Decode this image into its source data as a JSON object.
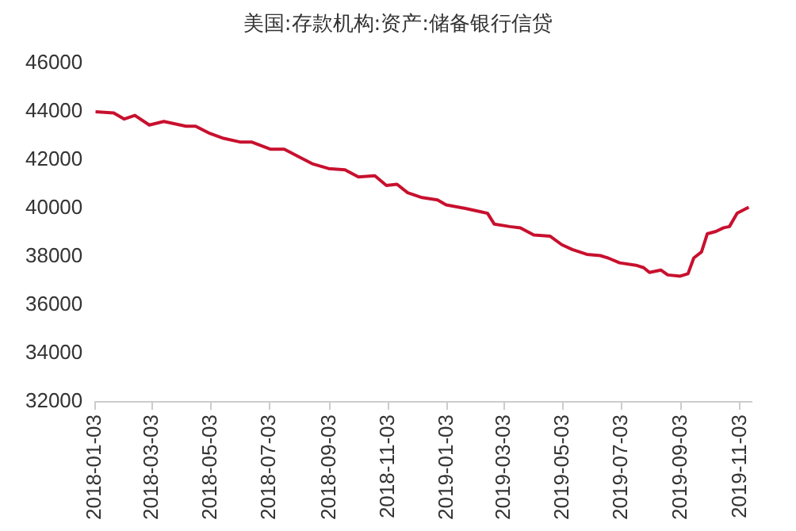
{
  "chart_data": {
    "type": "line",
    "title": "美国:存款机构:资产:储备银行信贷",
    "x": [
      "2018-01-03",
      "2018-01-22",
      "2018-02-02",
      "2018-02-13",
      "2018-02-28",
      "2018-03-15",
      "2018-04-07",
      "2018-04-17",
      "2018-05-02",
      "2018-05-16",
      "2018-06-02",
      "2018-06-14",
      "2018-07-04",
      "2018-07-18",
      "2018-08-04",
      "2018-08-16",
      "2018-09-02",
      "2018-09-19",
      "2018-10-03",
      "2018-10-20",
      "2018-11-01",
      "2018-11-12",
      "2018-11-23",
      "2018-12-08",
      "2018-12-24",
      "2019-01-02",
      "2019-01-22",
      "2019-02-08",
      "2019-02-14",
      "2019-02-21",
      "2019-03-09",
      "2019-03-20",
      "2019-04-03",
      "2019-04-20",
      "2019-05-02",
      "2019-05-13",
      "2019-05-28",
      "2019-06-11",
      "2019-06-19",
      "2019-07-01",
      "2019-07-18",
      "2019-07-26",
      "2019-08-01",
      "2019-08-13",
      "2019-08-20",
      "2019-09-02",
      "2019-09-10",
      "2019-09-16",
      "2019-09-24",
      "2019-09-30",
      "2019-10-09",
      "2019-10-17",
      "2019-10-23",
      "2019-10-31",
      "2019-11-12"
    ],
    "series": [
      {
        "color": "#c8102e",
        "values": [
          44000,
          43950,
          43700,
          43850,
          43450,
          43600,
          43400,
          43400,
          43100,
          42900,
          42750,
          42750,
          42450,
          42450,
          42100,
          41850,
          41650,
          41600,
          41300,
          41350,
          40950,
          41000,
          40650,
          40450,
          40350,
          40150,
          40000,
          39850,
          39800,
          39350,
          39250,
          39200,
          38900,
          38850,
          38500,
          38300,
          38100,
          38050,
          37950,
          37750,
          37650,
          37550,
          37350,
          37450,
          37250,
          37200,
          37300,
          37950,
          38200,
          38950,
          39050,
          39200,
          39250,
          39800,
          40050
        ]
      }
    ],
    "xlim": [
      "2018-01-03",
      "2019-11-15"
    ],
    "xticks": [
      "2018-01-03",
      "2018-03-03",
      "2018-05-03",
      "2018-07-03",
      "2018-09-03",
      "2018-11-03",
      "2019-01-03",
      "2019-03-03",
      "2019-05-03",
      "2019-07-03",
      "2019-09-03",
      "2019-11-03"
    ],
    "ylim": [
      32000,
      46000
    ],
    "yticks": [
      32000,
      34000,
      36000,
      38000,
      40000,
      42000,
      44000,
      46000
    ],
    "grid": false,
    "legend": false,
    "marker": "none",
    "line_style": "solid"
  }
}
